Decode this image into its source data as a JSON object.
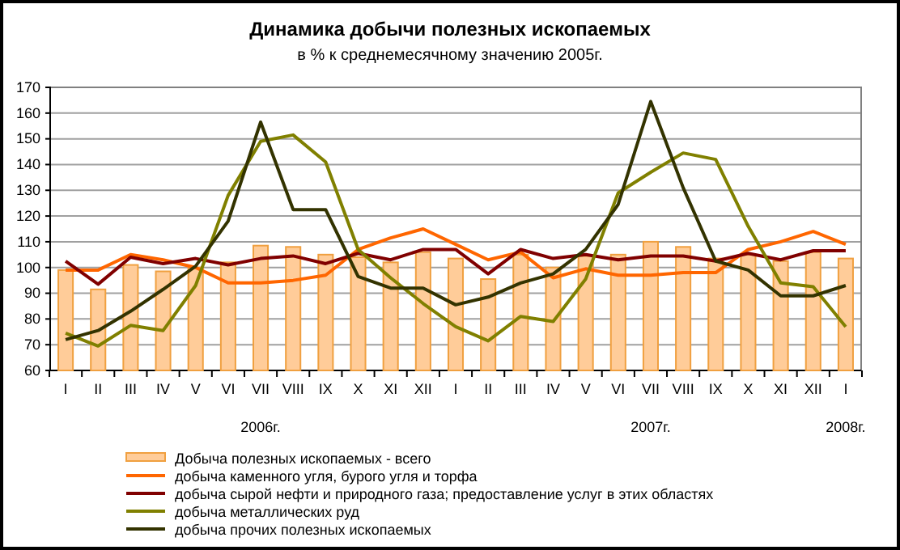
{
  "chart_data": {
    "type": "bar",
    "title": "Динамика добычи полезных ископаемых",
    "subtitle": "в  % к среднемесячному значению 2005г.",
    "categories": [
      "I",
      "II",
      "III",
      "IV",
      "V",
      "VI",
      "VII",
      "VIII",
      "IX",
      "X",
      "XI",
      "XII",
      "I",
      "II",
      "III",
      "IV",
      "V",
      "VI",
      "VII",
      "VIII",
      "IX",
      "X",
      "XI",
      "XII",
      "I"
    ],
    "annotations": [
      "2006г.",
      "2007г.",
      "2008г."
    ],
    "ylim": [
      60,
      170
    ],
    "yticks": [
      60,
      70,
      80,
      90,
      100,
      110,
      120,
      130,
      140,
      150,
      160,
      170
    ],
    "grid": "y",
    "legend": "bottom",
    "series": [
      {
        "name": "Добыча полезных ископаемых - всего",
        "color": "#ffcc99",
        "values": [
          99,
          91.5,
          101,
          98.5,
          100,
          102,
          108.5,
          108,
          105,
          104,
          102,
          106,
          103.5,
          95.5,
          105,
          100,
          104.5,
          105,
          110,
          108,
          103.5,
          105,
          102.5,
          106,
          103.5
        ]
      },
      {
        "name": "добыча каменного угля, бурого угля и торфа",
        "type": "line",
        "color": "#ff6600",
        "values": [
          99,
          99,
          105,
          103,
          100,
          94,
          94,
          95,
          97,
          107,
          111.5,
          115,
          109,
          103,
          106,
          96,
          99.5,
          97,
          97,
          98,
          98,
          107,
          110,
          114,
          109
        ]
      },
      {
        "name": "добыча сырой нефти и природного газа; предоставление услуг в этих областях",
        "type": "line",
        "color": "#800000",
        "values": [
          102.5,
          93.5,
          104,
          101.5,
          103.5,
          101,
          103.5,
          104.5,
          101.5,
          105.5,
          103,
          107,
          107,
          97.5,
          107,
          103.5,
          105,
          103,
          104.5,
          104.5,
          102.5,
          105.5,
          103,
          106.5,
          106.5
        ]
      },
      {
        "name": "добыча металлических руд",
        "type": "line",
        "color": "#808000",
        "values": [
          74.5,
          69.5,
          77.5,
          75.5,
          93,
          128,
          149,
          151.5,
          141,
          107,
          96,
          86,
          77,
          71.5,
          81,
          79,
          95.5,
          129,
          137,
          144.5,
          142,
          116,
          94,
          92.5,
          77
        ]
      },
      {
        "name": "добыча прочих полезных ископаемых",
        "type": "line",
        "color": "#333300",
        "values": [
          72,
          75.5,
          83,
          91.5,
          100.5,
          118,
          156.5,
          122.5,
          122.5,
          96.5,
          92,
          92,
          85.5,
          88.5,
          94,
          97.5,
          107,
          124.5,
          164.5,
          131,
          102.5,
          99,
          89,
          89,
          93
        ]
      }
    ]
  }
}
